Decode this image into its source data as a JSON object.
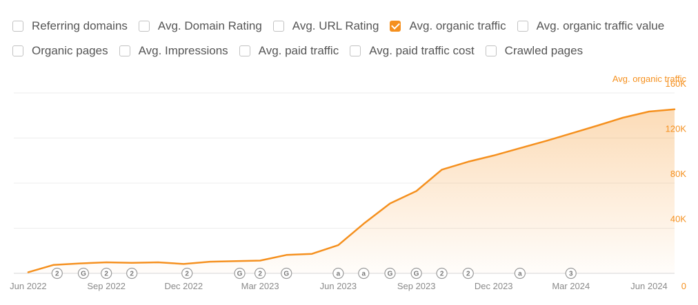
{
  "metrics": {
    "row1": [
      {
        "label": "Referring domains",
        "checked": false
      },
      {
        "label": "Avg. Domain Rating",
        "checked": false
      },
      {
        "label": "Avg. URL Rating",
        "checked": false
      },
      {
        "label": "Avg. organic traffic",
        "checked": true
      },
      {
        "label": "Avg. organic traffic value",
        "checked": false
      }
    ],
    "row2": [
      {
        "label": "Organic pages",
        "checked": false
      },
      {
        "label": "Avg. Impressions",
        "checked": false
      },
      {
        "label": "Avg. paid traffic",
        "checked": false
      },
      {
        "label": "Avg. paid traffic cost",
        "checked": false
      },
      {
        "label": "Crawled pages",
        "checked": false
      }
    ]
  },
  "chart_data": {
    "type": "area",
    "ylabel": "Avg. organic traffic",
    "ylim": [
      0,
      160000
    ],
    "yticks": [
      {
        "value": 0,
        "label": "0"
      },
      {
        "value": 40000,
        "label": "40K"
      },
      {
        "value": 80000,
        "label": "80K"
      },
      {
        "value": 120000,
        "label": "120K"
      },
      {
        "value": 160000,
        "label": "160K"
      }
    ],
    "xrange": [
      "2022-05-15",
      "2024-07-01"
    ],
    "xticks": [
      {
        "date": "2022-06-01",
        "label": "Jun 2022"
      },
      {
        "date": "2022-09-01",
        "label": "Sep 2022"
      },
      {
        "date": "2022-12-01",
        "label": "Dec 2022"
      },
      {
        "date": "2023-03-01",
        "label": "Mar 2023"
      },
      {
        "date": "2023-06-01",
        "label": "Jun 2023"
      },
      {
        "date": "2023-09-01",
        "label": "Sep 2023"
      },
      {
        "date": "2023-12-01",
        "label": "Dec 2023"
      },
      {
        "date": "2024-03-01",
        "label": "Mar 2024"
      },
      {
        "date": "2024-06-01",
        "label": "Jun 2024"
      }
    ],
    "series": [
      {
        "name": "Avg. organic traffic",
        "color": "#f5901e",
        "points": [
          {
            "x": "2022-06-01",
            "y": 1000
          },
          {
            "x": "2022-07-01",
            "y": 7500
          },
          {
            "x": "2022-08-01",
            "y": 8800
          },
          {
            "x": "2022-09-01",
            "y": 9800
          },
          {
            "x": "2022-10-01",
            "y": 9300
          },
          {
            "x": "2022-11-01",
            "y": 9800
          },
          {
            "x": "2022-12-01",
            "y": 8300
          },
          {
            "x": "2023-01-01",
            "y": 10300
          },
          {
            "x": "2023-02-01",
            "y": 10800
          },
          {
            "x": "2023-03-01",
            "y": 11300
          },
          {
            "x": "2023-04-01",
            "y": 16300
          },
          {
            "x": "2023-05-01",
            "y": 17300
          },
          {
            "x": "2023-06-01",
            "y": 25000
          },
          {
            "x": "2023-07-01",
            "y": 44000
          },
          {
            "x": "2023-08-01",
            "y": 62000
          },
          {
            "x": "2023-09-01",
            "y": 73000
          },
          {
            "x": "2023-10-01",
            "y": 92000
          },
          {
            "x": "2023-11-01",
            "y": 99000
          },
          {
            "x": "2023-12-01",
            "y": 104500
          },
          {
            "x": "2024-01-01",
            "y": 111000
          },
          {
            "x": "2024-02-01",
            "y": 117500
          },
          {
            "x": "2024-03-01",
            "y": 124000
          },
          {
            "x": "2024-04-01",
            "y": 131000
          },
          {
            "x": "2024-05-01",
            "y": 138000
          },
          {
            "x": "2024-06-01",
            "y": 143500
          },
          {
            "x": "2024-07-01",
            "y": 145500
          }
        ]
      }
    ],
    "annotations": [
      {
        "date": "2022-07-05",
        "label": "2"
      },
      {
        "date": "2022-08-05",
        "label": "G"
      },
      {
        "date": "2022-09-01",
        "label": "2"
      },
      {
        "date": "2022-10-01",
        "label": "2"
      },
      {
        "date": "2022-12-05",
        "label": "2"
      },
      {
        "date": "2023-02-05",
        "label": "G"
      },
      {
        "date": "2023-03-01",
        "label": "2"
      },
      {
        "date": "2023-04-01",
        "label": "G"
      },
      {
        "date": "2023-06-01",
        "label": "a"
      },
      {
        "date": "2023-07-01",
        "label": "a"
      },
      {
        "date": "2023-08-01",
        "label": "G"
      },
      {
        "date": "2023-09-01",
        "label": "G"
      },
      {
        "date": "2023-10-01",
        "label": "2"
      },
      {
        "date": "2023-11-01",
        "label": "2"
      },
      {
        "date": "2024-01-01",
        "label": "a"
      },
      {
        "date": "2024-03-01",
        "label": "3"
      }
    ],
    "grid": true
  }
}
